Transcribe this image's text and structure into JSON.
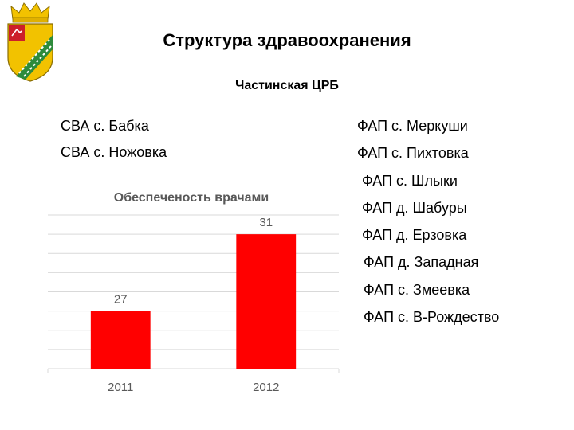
{
  "header": {
    "title": "Структура здравоохранения",
    "subtitle": "Частинская ЦРБ"
  },
  "left_items": [
    "СВА с. Бабка",
    "СВА с. Ножовка"
  ],
  "right_items": [
    "ФАП с. Меркуши",
    "ФАП с. Пихтовка",
    "ФАП с. Шлыки",
    "ФАП д. Шабуры",
    "ФАП д. Ерзовка",
    "ФАП д. Западная",
    "ФАП с. Змеевка",
    "ФАП с. В-Рождество"
  ],
  "colors": {
    "bar": "#ff0000",
    "grid": "#d9d9d9",
    "chart_title": "#595959",
    "axis_text": "#595959",
    "coat_gold": "#f2c200",
    "coat_green": "#2e8b3c",
    "coat_red": "#cc1f2a"
  },
  "emblem": {
    "icon": "coat-of-arms-icon"
  },
  "chart_data": {
    "type": "bar",
    "title": "Обеспеченость врачами",
    "categories": [
      "2011",
      "2012"
    ],
    "values": [
      27,
      31
    ],
    "value_labels": [
      "27",
      "31"
    ],
    "ylim": [
      24,
      32
    ],
    "grid": true,
    "legend": "none",
    "xlabel": "",
    "ylabel": ""
  }
}
